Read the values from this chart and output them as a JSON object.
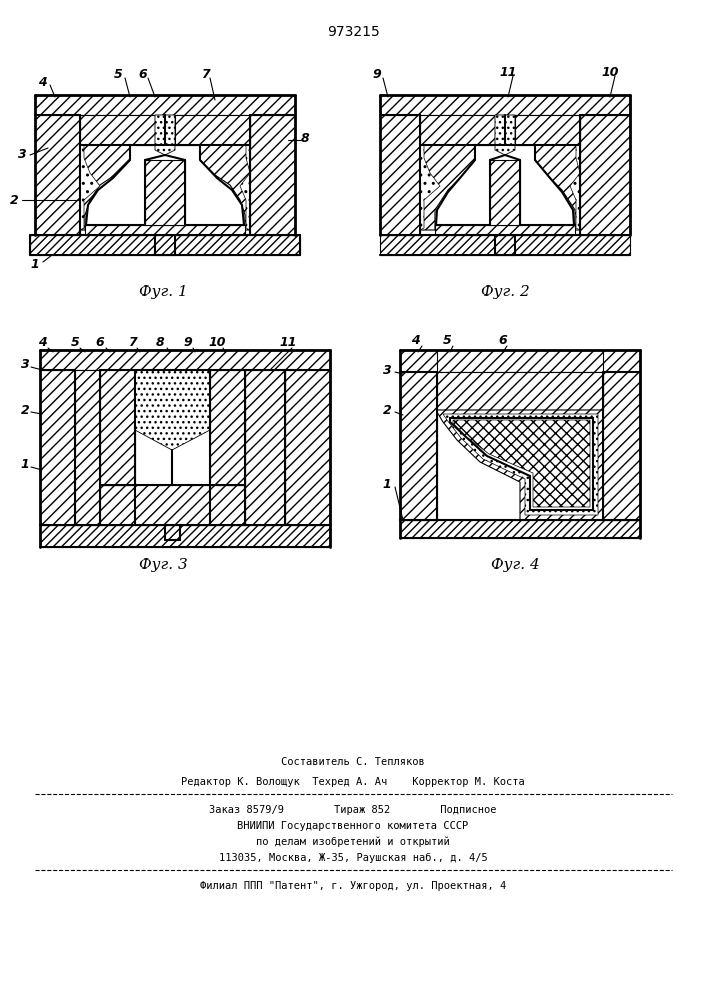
{
  "patent_number": "973215",
  "fig_labels": [
    "Фуг. 1",
    "Фуг. 2",
    "Фуг. 3",
    "Фуг. 4"
  ],
  "footer_lines": [
    "Составитель С. Тепляков",
    "Редактор К. Волощук  Техред А. Ач    Корректор М. Коста",
    "Заказ 8579/9        Тираж 852        Подписное",
    "ВНИИПИ Государственного комитета СССР",
    "по делам изобретений и открытий",
    "113035, Москва, Ж-35, Раушская наб., д. 4/5",
    "Филиал ППП \"Патент\", г. Ужгород, ул. Проектная, 4"
  ],
  "hatch_color": "#000000",
  "bg_color": "#ffffff",
  "line_color": "#000000"
}
